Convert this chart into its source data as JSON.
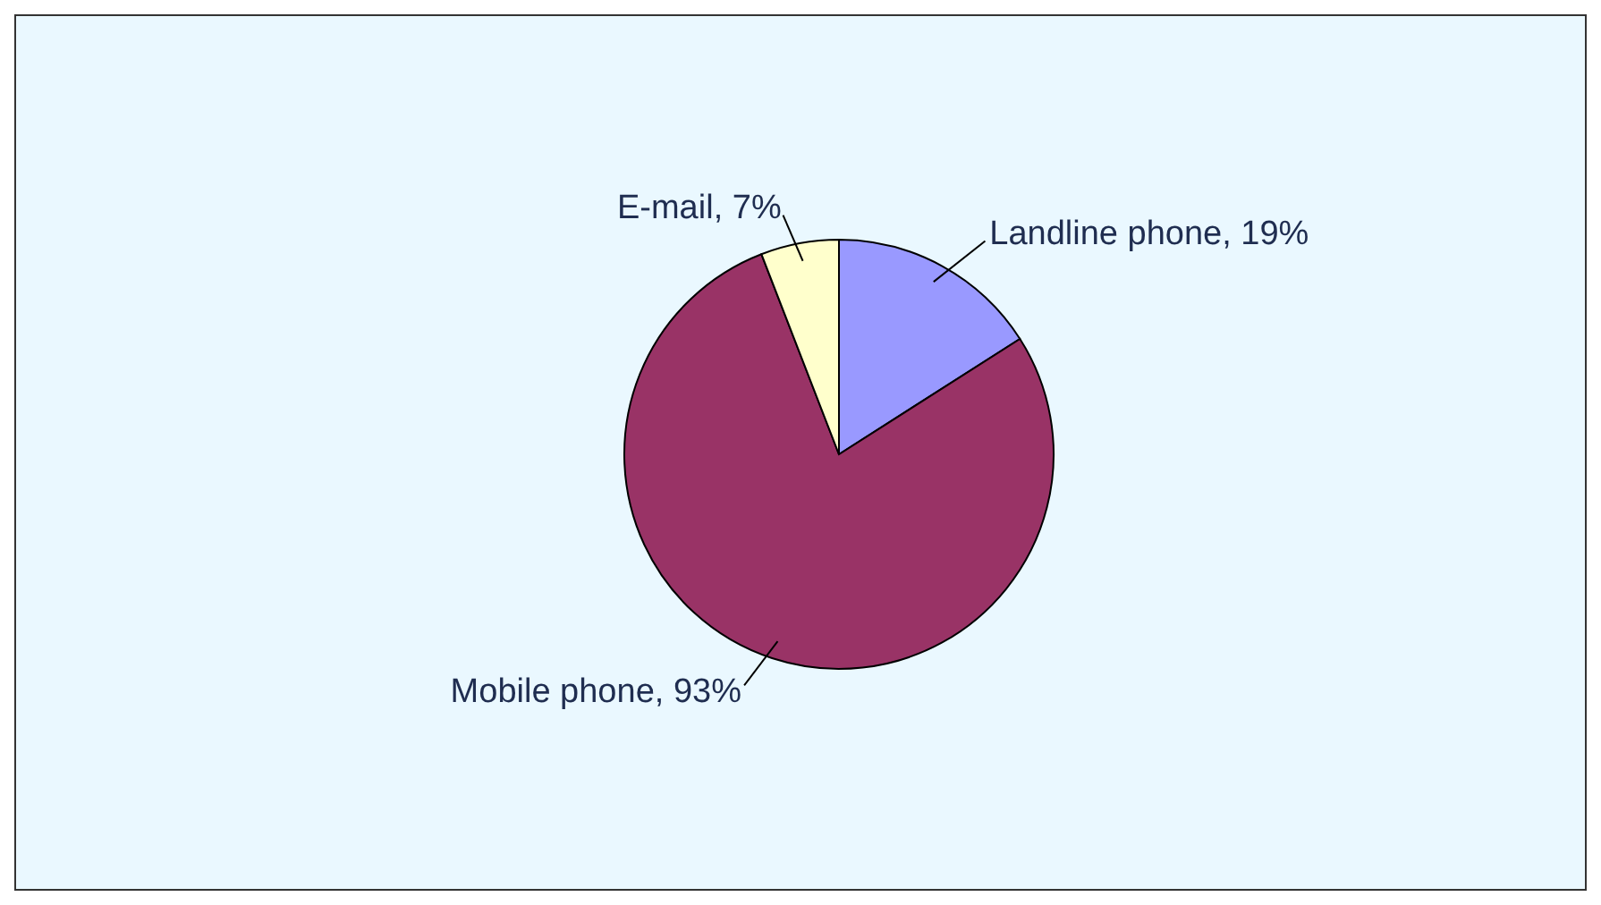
{
  "chart_data": {
    "type": "pie",
    "categories": [
      "Landline phone",
      "Mobile phone",
      "E-mail"
    ],
    "values": [
      19,
      93,
      7
    ],
    "colors": [
      "#9999ff",
      "#993366",
      "#ffffcc"
    ],
    "value_labels": [
      "19%",
      "93%",
      "7%"
    ],
    "legend": false
  }
}
